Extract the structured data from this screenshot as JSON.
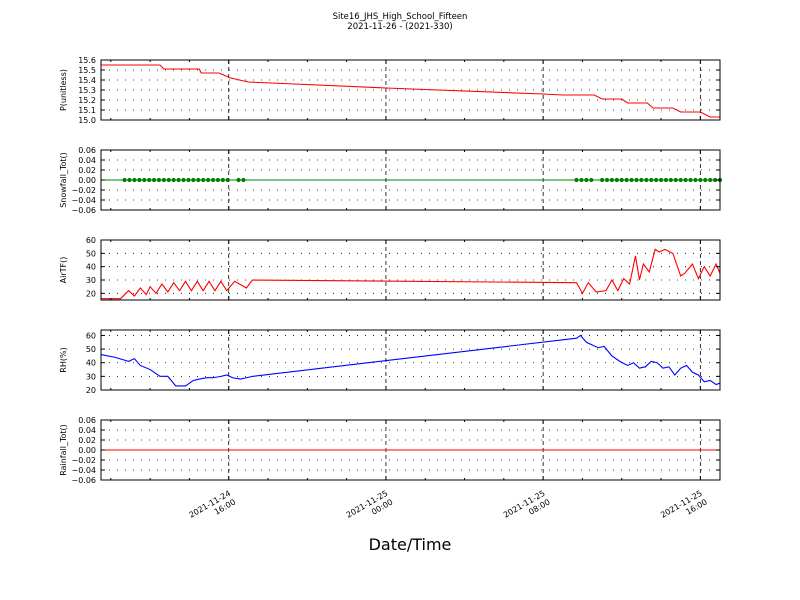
{
  "title": "Site16_JHS_High_School_Fifteen",
  "subtitle": "2021-11-26 - (2021-330)",
  "xlabel": "Date/Time",
  "x_ticks": [
    {
      "t": 16,
      "label1": "2021-11-24",
      "label2": "16:00"
    },
    {
      "t": 24,
      "label1": "2021-11-25",
      "label2": "00:00"
    },
    {
      "t": 32,
      "label1": "2021-11-25",
      "label2": "08:00"
    },
    {
      "t": 40,
      "label1": "2021-11-25",
      "label2": "16:00"
    }
  ],
  "chart_data": [
    {
      "type": "line",
      "ylabel": "P(unitless)",
      "color": "#ff0000",
      "ylim": [
        15.0,
        15.6
      ],
      "yticks": [
        15.0,
        15.1,
        15.2,
        15.3,
        15.4,
        15.5,
        15.6
      ],
      "ytick_labels": [
        "15.0",
        "15.1",
        "15.2",
        "15.3",
        "15.4",
        "15.5",
        "15.6"
      ],
      "x_hours_2021_11_24": [
        9.5,
        11.5,
        12.5,
        12.7,
        14.5,
        14.6,
        15.5,
        16.1,
        17,
        24,
        32,
        33,
        34.6,
        35,
        35.3,
        36,
        36.3,
        37.3,
        37.6,
        38.6,
        39,
        40,
        40.5,
        41
      ],
      "values": [
        15.55,
        15.55,
        15.55,
        15.51,
        15.51,
        15.47,
        15.47,
        15.42,
        15.38,
        15.32,
        15.26,
        15.25,
        15.25,
        15.21,
        15.21,
        15.21,
        15.17,
        15.17,
        15.12,
        15.12,
        15.08,
        15.08,
        15.03,
        15.03
      ],
      "grid": true
    },
    {
      "type": "line",
      "ylabel": "Snowfall_Tot()",
      "color": "#008000",
      "marker_color": "#008000",
      "ylim": [
        -0.06,
        0.06
      ],
      "yticks": [
        -0.06,
        -0.04,
        -0.02,
        0.0,
        0.02,
        0.04,
        0.06
      ],
      "ytick_labels": [
        "−0.06",
        "−0.04",
        "−0.02",
        "0.00",
        "0.02",
        "0.04",
        "0.06"
      ],
      "x_hours_2021_11_24": [
        9.5,
        41
      ],
      "values": [
        0,
        0
      ],
      "marker_ranges_hours": [
        [
          10.7,
          16.0
        ],
        [
          16.5,
          16.8
        ],
        [
          33.7,
          34.6
        ],
        [
          35.0,
          41.0
        ]
      ],
      "marker_step_hours": 0.25,
      "grid": true
    },
    {
      "type": "line",
      "ylabel": "AirTF()",
      "color": "#ff0000",
      "ylim": [
        15,
        60
      ],
      "yticks": [
        20,
        30,
        40,
        50,
        60
      ],
      "ytick_labels": [
        "20",
        "30",
        "40",
        "50",
        "60"
      ],
      "x_hours_2021_11_24": [
        9.5,
        10.5,
        10.9,
        11.2,
        11.5,
        11.8,
        12,
        12.3,
        12.6,
        12.9,
        13.2,
        13.5,
        13.8,
        14.1,
        14.4,
        14.7,
        15,
        15.3,
        15.6,
        15.9,
        16.3,
        16.9,
        17.2,
        33.7,
        34,
        34.3,
        34.7,
        35.2,
        35.5,
        35.8,
        36.1,
        36.4,
        36.7,
        36.9,
        37.1,
        37.4,
        37.7,
        37.9,
        38.2,
        38.6,
        39,
        39.2,
        39.6,
        39.9,
        40.2,
        40.5,
        40.8,
        41
      ],
      "values": [
        16,
        16,
        22,
        18,
        24,
        19,
        25,
        20,
        27,
        21,
        28,
        22,
        29,
        22,
        29,
        22,
        29,
        22,
        29,
        22,
        29,
        24,
        30,
        28,
        20,
        28,
        21,
        22,
        30,
        22,
        31,
        27,
        48,
        30,
        42,
        36,
        53,
        51,
        53,
        50,
        33,
        35,
        42,
        31,
        40,
        33,
        42,
        35
      ],
      "grid": true
    },
    {
      "type": "line",
      "ylabel": "RH(%)",
      "color": "#0000ff",
      "ylim": [
        20,
        64
      ],
      "yticks": [
        20,
        30,
        40,
        50,
        60
      ],
      "ytick_labels": [
        "20",
        "30",
        "40",
        "50",
        "60"
      ],
      "x_hours_2021_11_24": [
        9.5,
        10.2,
        10.9,
        11.2,
        11.5,
        12,
        12.5,
        12.9,
        13.3,
        13.8,
        14.2,
        14.5,
        14.9,
        15.2,
        15.6,
        15.9,
        16.2,
        16.6,
        16.9,
        17.2,
        33.7,
        33.9,
        34.2,
        34.5,
        34.8,
        35.1,
        35.5,
        35.9,
        36.3,
        36.6,
        36.9,
        37.2,
        37.5,
        37.8,
        38.1,
        38.4,
        38.7,
        39.0,
        39.3,
        39.6,
        39.9,
        40.2,
        40.5,
        40.8,
        41
      ],
      "values": [
        46,
        44,
        41,
        43,
        38,
        35,
        30,
        30,
        23,
        23,
        27,
        28,
        29,
        29,
        30,
        31,
        29,
        28,
        29,
        30,
        58,
        60,
        55,
        53,
        51,
        52,
        45,
        41,
        38,
        40,
        36,
        37,
        41,
        40,
        36,
        37,
        31,
        36,
        38,
        33,
        31,
        26,
        27,
        24,
        25
      ],
      "grid": true
    },
    {
      "type": "line",
      "ylabel": "Rainfall_Tot()",
      "color": "#ff0000",
      "ylim": [
        -0.06,
        0.06
      ],
      "yticks": [
        -0.06,
        -0.04,
        -0.02,
        0.0,
        0.02,
        0.04,
        0.06
      ],
      "ytick_labels": [
        "−0.06",
        "−0.04",
        "−0.02",
        "0.00",
        "0.02",
        "0.04",
        "0.06"
      ],
      "x_hours_2021_11_24": [
        9.5,
        41
      ],
      "values": [
        0,
        0
      ],
      "grid": true
    }
  ]
}
